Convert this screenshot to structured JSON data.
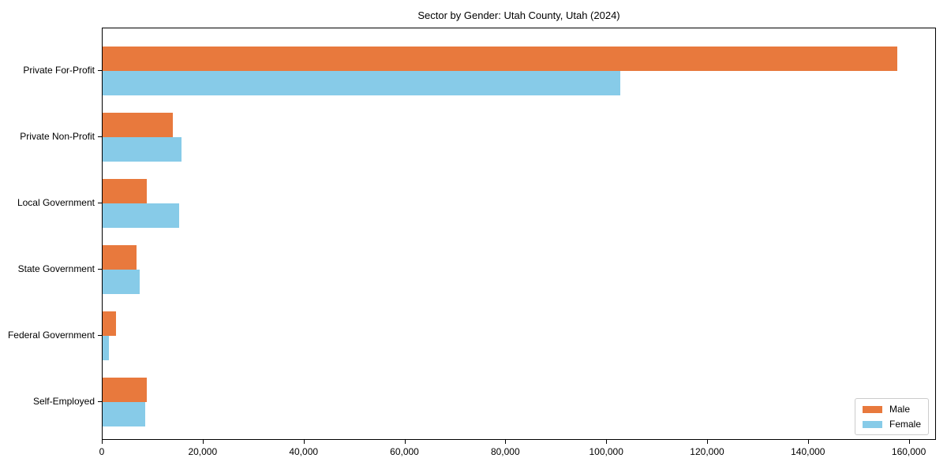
{
  "chart_data": {
    "type": "bar",
    "orientation": "horizontal",
    "title": "Sector by Gender: Utah County, Utah (2024)",
    "xlabel": "",
    "ylabel": "",
    "grid": false,
    "categories": [
      "Private For-Profit",
      "Private Non-Profit",
      "Local Government",
      "State Government",
      "Federal Government",
      "Self-Employed"
    ],
    "series": [
      {
        "name": "Male",
        "color": "#E8793D",
        "values": [
          157500,
          13900,
          8800,
          6700,
          2600,
          8800
        ]
      },
      {
        "name": "Female",
        "color": "#87CBE8",
        "values": [
          102700,
          15700,
          15100,
          7300,
          1250,
          8500
        ]
      }
    ],
    "xlim": [
      0,
      165375
    ],
    "xticks": {
      "values": [
        0,
        20000,
        40000,
        60000,
        80000,
        100000,
        120000,
        140000,
        160000
      ],
      "labels": [
        "0",
        "20,000",
        "40,000",
        "60,000",
        "80,000",
        "100,000",
        "120,000",
        "140,000",
        "160,000"
      ]
    },
    "legend": {
      "position": "lower right",
      "entries": [
        "Male",
        "Female"
      ]
    }
  }
}
